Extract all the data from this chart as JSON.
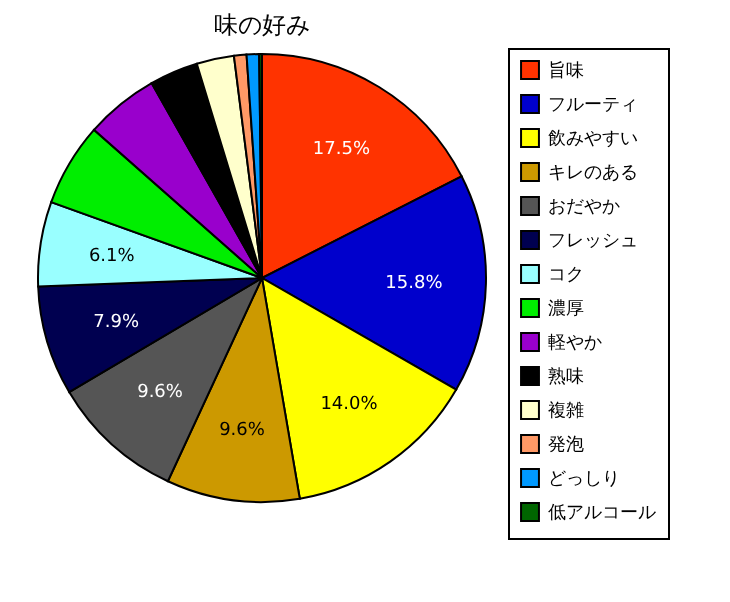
{
  "chart_data": {
    "type": "pie",
    "title": "味の好み",
    "categories": [
      "旨味",
      "フルーティ",
      "飲みやすい",
      "キレのある",
      "おだやか",
      "フレッシュ",
      "コク",
      "濃厚",
      "軽やか",
      "熟味",
      "複雑",
      "発泡",
      "どっしり",
      "低アルコール"
    ],
    "values": [
      17.5,
      15.8,
      14.0,
      9.6,
      9.6,
      7.9,
      6.1,
      6.0,
      5.3,
      3.5,
      2.7,
      0.9,
      0.9,
      0.2
    ],
    "value_labels": [
      "17.5%",
      "15.8%",
      "14.0%",
      "9.6%",
      "9.6%",
      "7.9%",
      "6.1%",
      null,
      null,
      null,
      null,
      null,
      null,
      null
    ],
    "colors": [
      "#ff3300",
      "#0000cc",
      "#ffff00",
      "#cc9900",
      "#555555",
      "#000050",
      "#99ffff",
      "#00ee00",
      "#9900cc",
      "#000000",
      "#ffffcc",
      "#ff9966",
      "#0099ff",
      "#006600"
    ],
    "legend": "right"
  }
}
